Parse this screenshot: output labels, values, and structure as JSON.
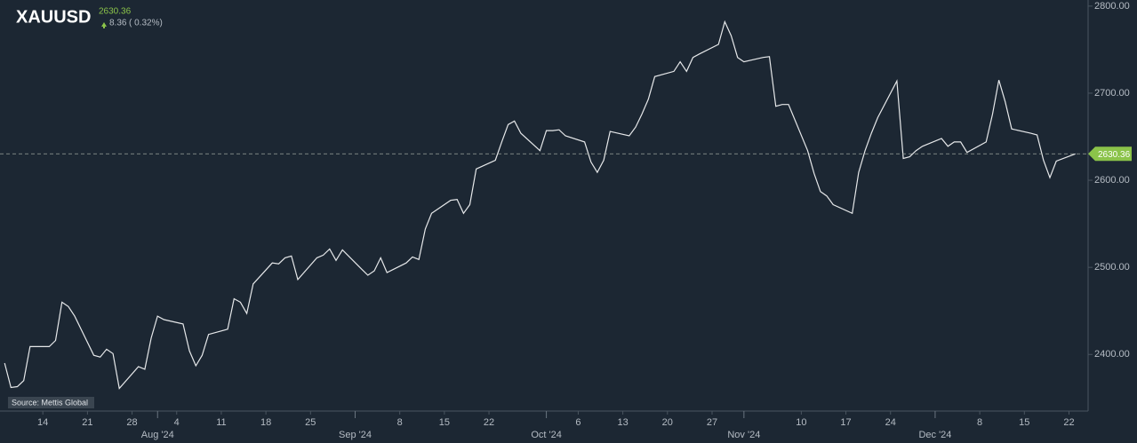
{
  "chart_data": {
    "type": "line",
    "title": "XAUUSD",
    "last_price": 2630.36,
    "change": 8.36,
    "change_pct_label": "( 0.32%)",
    "source": "Source: Mettis Global",
    "line_color": "#e6e8ea",
    "price_color": "#8bc34a",
    "x": [
      "2024-07-08",
      "2024-07-09",
      "2024-07-10",
      "2024-07-11",
      "2024-07-12",
      "2024-07-15",
      "2024-07-16",
      "2024-07-17",
      "2024-07-18",
      "2024-07-19",
      "2024-07-22",
      "2024-07-23",
      "2024-07-24",
      "2024-07-25",
      "2024-07-26",
      "2024-07-29",
      "2024-07-30",
      "2024-07-31",
      "2024-08-01",
      "2024-08-02",
      "2024-08-05",
      "2024-08-06",
      "2024-08-07",
      "2024-08-08",
      "2024-08-09",
      "2024-08-12",
      "2024-08-13",
      "2024-08-14",
      "2024-08-15",
      "2024-08-16",
      "2024-08-19",
      "2024-08-20",
      "2024-08-21",
      "2024-08-22",
      "2024-08-23",
      "2024-08-26",
      "2024-08-27",
      "2024-08-28",
      "2024-08-29",
      "2024-08-30",
      "2024-09-02",
      "2024-09-03",
      "2024-09-04",
      "2024-09-05",
      "2024-09-06",
      "2024-09-09",
      "2024-09-10",
      "2024-09-11",
      "2024-09-12",
      "2024-09-13",
      "2024-09-16",
      "2024-09-17",
      "2024-09-18",
      "2024-09-19",
      "2024-09-20",
      "2024-09-23",
      "2024-09-24",
      "2024-09-25",
      "2024-09-26",
      "2024-09-27",
      "2024-09-30",
      "2024-10-01",
      "2024-10-02",
      "2024-10-03",
      "2024-10-04",
      "2024-10-07",
      "2024-10-08",
      "2024-10-09",
      "2024-10-10",
      "2024-10-11",
      "2024-10-14",
      "2024-10-15",
      "2024-10-16",
      "2024-10-17",
      "2024-10-18",
      "2024-10-21",
      "2024-10-22",
      "2024-10-23",
      "2024-10-24",
      "2024-10-25",
      "2024-10-28",
      "2024-10-29",
      "2024-10-30",
      "2024-10-31",
      "2024-11-01",
      "2024-11-04",
      "2024-11-05",
      "2024-11-06",
      "2024-11-07",
      "2024-11-08",
      "2024-11-11",
      "2024-11-12",
      "2024-11-13",
      "2024-11-14",
      "2024-11-15",
      "2024-11-18",
      "2024-11-19",
      "2024-11-20",
      "2024-11-21",
      "2024-11-22",
      "2024-11-25",
      "2024-11-26",
      "2024-11-27",
      "2024-11-28",
      "2024-11-29",
      "2024-12-02",
      "2024-12-03",
      "2024-12-04",
      "2024-12-05",
      "2024-12-06",
      "2024-12-09",
      "2024-12-10",
      "2024-12-11",
      "2024-12-12",
      "2024-12-13",
      "2024-12-16",
      "2024-12-17",
      "2024-12-18",
      "2024-12-19",
      "2024-12-20",
      "2024-12-23"
    ],
    "values": [
      2390,
      2362,
      2363,
      2370,
      2409,
      2409,
      2416,
      2460,
      2455,
      2444,
      2399,
      2397,
      2406,
      2401,
      2361,
      2386,
      2383,
      2419,
      2444,
      2440,
      2435,
      2404,
      2387,
      2399,
      2423,
      2429,
      2464,
      2460,
      2447,
      2481,
      2505,
      2504,
      2511,
      2513,
      2486,
      2511,
      2514,
      2521,
      2508,
      2520,
      2498,
      2491,
      2496,
      2511,
      2494,
      2505,
      2512,
      2509,
      2544,
      2562,
      2577,
      2578,
      2562,
      2572,
      2613,
      2623,
      2644,
      2664,
      2668,
      2654,
      2634,
      2657,
      2657,
      2658,
      2651,
      2644,
      2621,
      2609,
      2623,
      2656,
      2651,
      2661,
      2676,
      2693,
      2719,
      2725,
      2736,
      2725,
      2741,
      2745,
      2756,
      2782,
      2766,
      2741,
      2736,
      2741,
      2742,
      2685,
      2687,
      2687,
      2634,
      2608,
      2587,
      2582,
      2572,
      2562,
      2609,
      2634,
      2654,
      2672,
      2714,
      2625,
      2627,
      2634,
      2639,
      2648,
      2639,
      2644,
      2644,
      2632,
      2644,
      2676,
      2715,
      2690,
      2659,
      2654,
      2652,
      2623,
      2603,
      2622,
      2630.36
    ],
    "xlim": [
      "2024-07-07",
      "2024-12-25"
    ],
    "ylim": [
      2335,
      2807
    ],
    "yticks": [
      {
        "value": 2400,
        "label": "2400.00"
      },
      {
        "value": 2500,
        "label": "2500.00"
      },
      {
        "value": 2600,
        "label": "2600.00"
      },
      {
        "value": 2700,
        "label": "2700.00"
      },
      {
        "value": 2800,
        "label": "2800.00"
      }
    ],
    "xticks": [
      {
        "value": "2024-07-14",
        "label": "14"
      },
      {
        "value": "2024-07-21",
        "label": "21"
      },
      {
        "value": "2024-07-28",
        "label": "28"
      },
      {
        "value": "2024-08-04",
        "label": "4"
      },
      {
        "value": "2024-08-11",
        "label": "11"
      },
      {
        "value": "2024-08-18",
        "label": "18"
      },
      {
        "value": "2024-08-25",
        "label": "25"
      },
      {
        "value": "2024-09-08",
        "label": "8"
      },
      {
        "value": "2024-09-15",
        "label": "15"
      },
      {
        "value": "2024-09-22",
        "label": "22"
      },
      {
        "value": "2024-10-06",
        "label": "6"
      },
      {
        "value": "2024-10-13",
        "label": "13"
      },
      {
        "value": "2024-10-20",
        "label": "20"
      },
      {
        "value": "2024-10-27",
        "label": "27"
      },
      {
        "value": "2024-11-10",
        "label": "10"
      },
      {
        "value": "2024-11-17",
        "label": "17"
      },
      {
        "value": "2024-11-24",
        "label": "24"
      },
      {
        "value": "2024-12-08",
        "label": "8"
      },
      {
        "value": "2024-12-15",
        "label": "15"
      },
      {
        "value": "2024-12-22",
        "label": "22"
      }
    ],
    "month_ticks": [
      {
        "value": "2024-08-01",
        "label": "Aug '24"
      },
      {
        "value": "2024-09-01",
        "label": "Sep '24"
      },
      {
        "value": "2024-10-01",
        "label": "Oct '24"
      },
      {
        "value": "2024-11-01",
        "label": "Nov '24"
      },
      {
        "value": "2024-12-01",
        "label": "Dec '24"
      }
    ]
  }
}
